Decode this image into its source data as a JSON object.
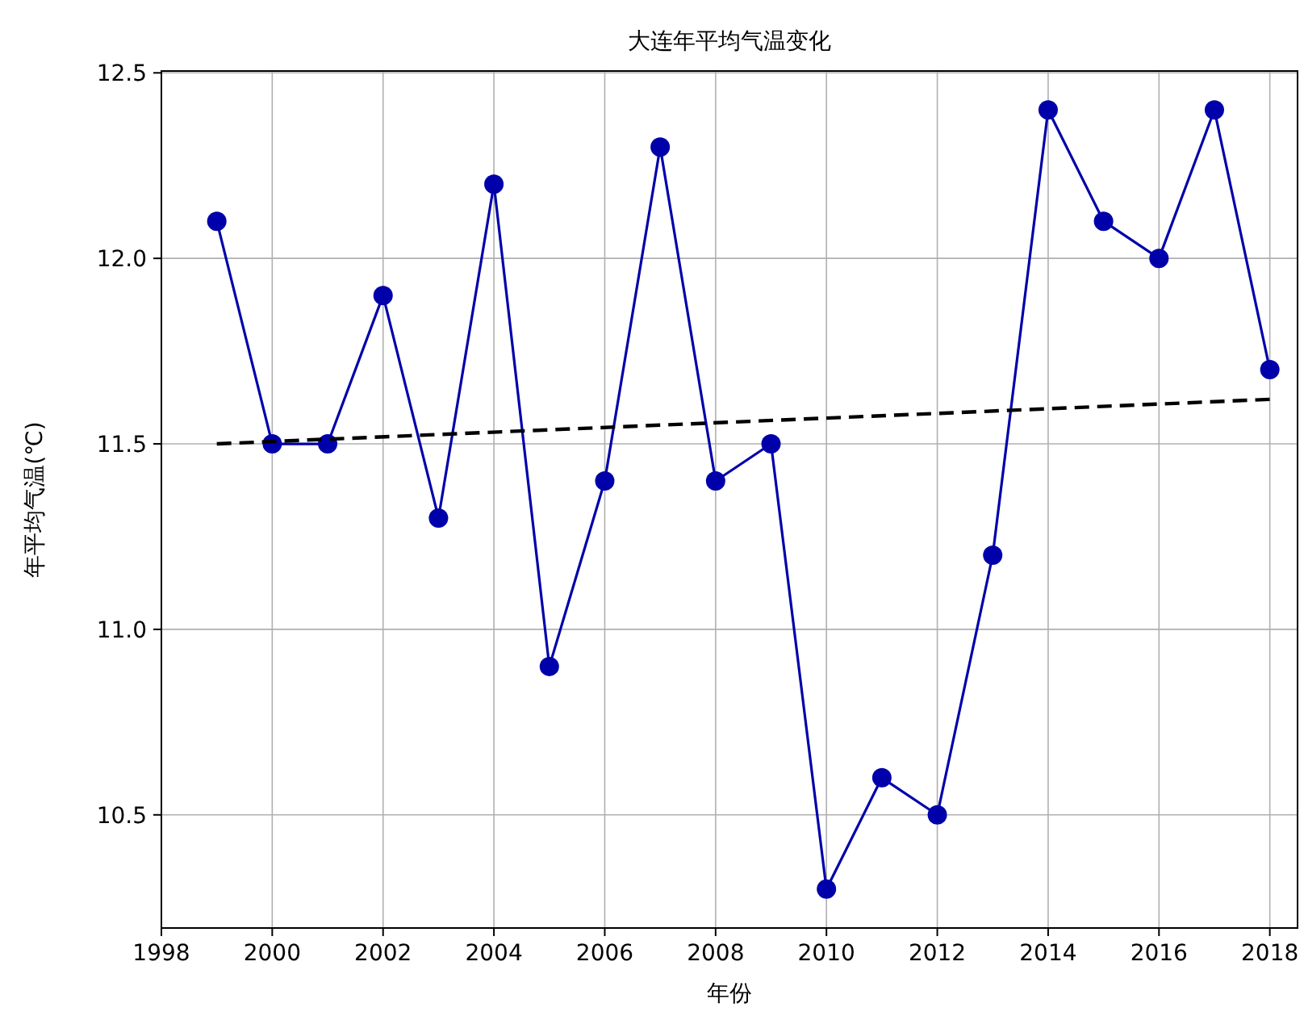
{
  "chart_data": {
    "type": "line",
    "title": "大连年平均气温变化",
    "xlabel": "年份",
    "ylabel": "年平均气温(℃)",
    "x": [
      1999,
      2000,
      2001,
      2002,
      2003,
      2004,
      2005,
      2006,
      2007,
      2008,
      2009,
      2010,
      2011,
      2012,
      2013,
      2014,
      2015,
      2016,
      2017,
      2018
    ],
    "series": [
      {
        "color": "#0000aa",
        "marker": "circle",
        "line_style": "solid",
        "values": [
          12.1,
          11.5,
          11.5,
          11.9,
          11.3,
          12.2,
          10.9,
          11.4,
          12.3,
          11.4,
          11.5,
          10.3,
          10.6,
          10.5,
          11.2,
          12.4,
          12.1,
          12.0,
          12.4,
          11.7
        ]
      },
      {
        "type": "line",
        "color": "#000000",
        "marker": "none",
        "line_style": "dashed",
        "x": [
          1999,
          2018
        ],
        "values": [
          11.5,
          11.62
        ]
      }
    ],
    "xlim": [
      1998,
      2018.5
    ],
    "ylim": [
      10.195,
      12.505
    ],
    "xticks": [
      1998,
      2000,
      2002,
      2004,
      2006,
      2008,
      2010,
      2012,
      2014,
      2016,
      2018
    ],
    "yticks": [
      10.5,
      {
        "value": 11,
        "label": "11.0"
      },
      11.5,
      {
        "value": 12,
        "label": "12.0"
      },
      12.5
    ],
    "grid": true
  }
}
